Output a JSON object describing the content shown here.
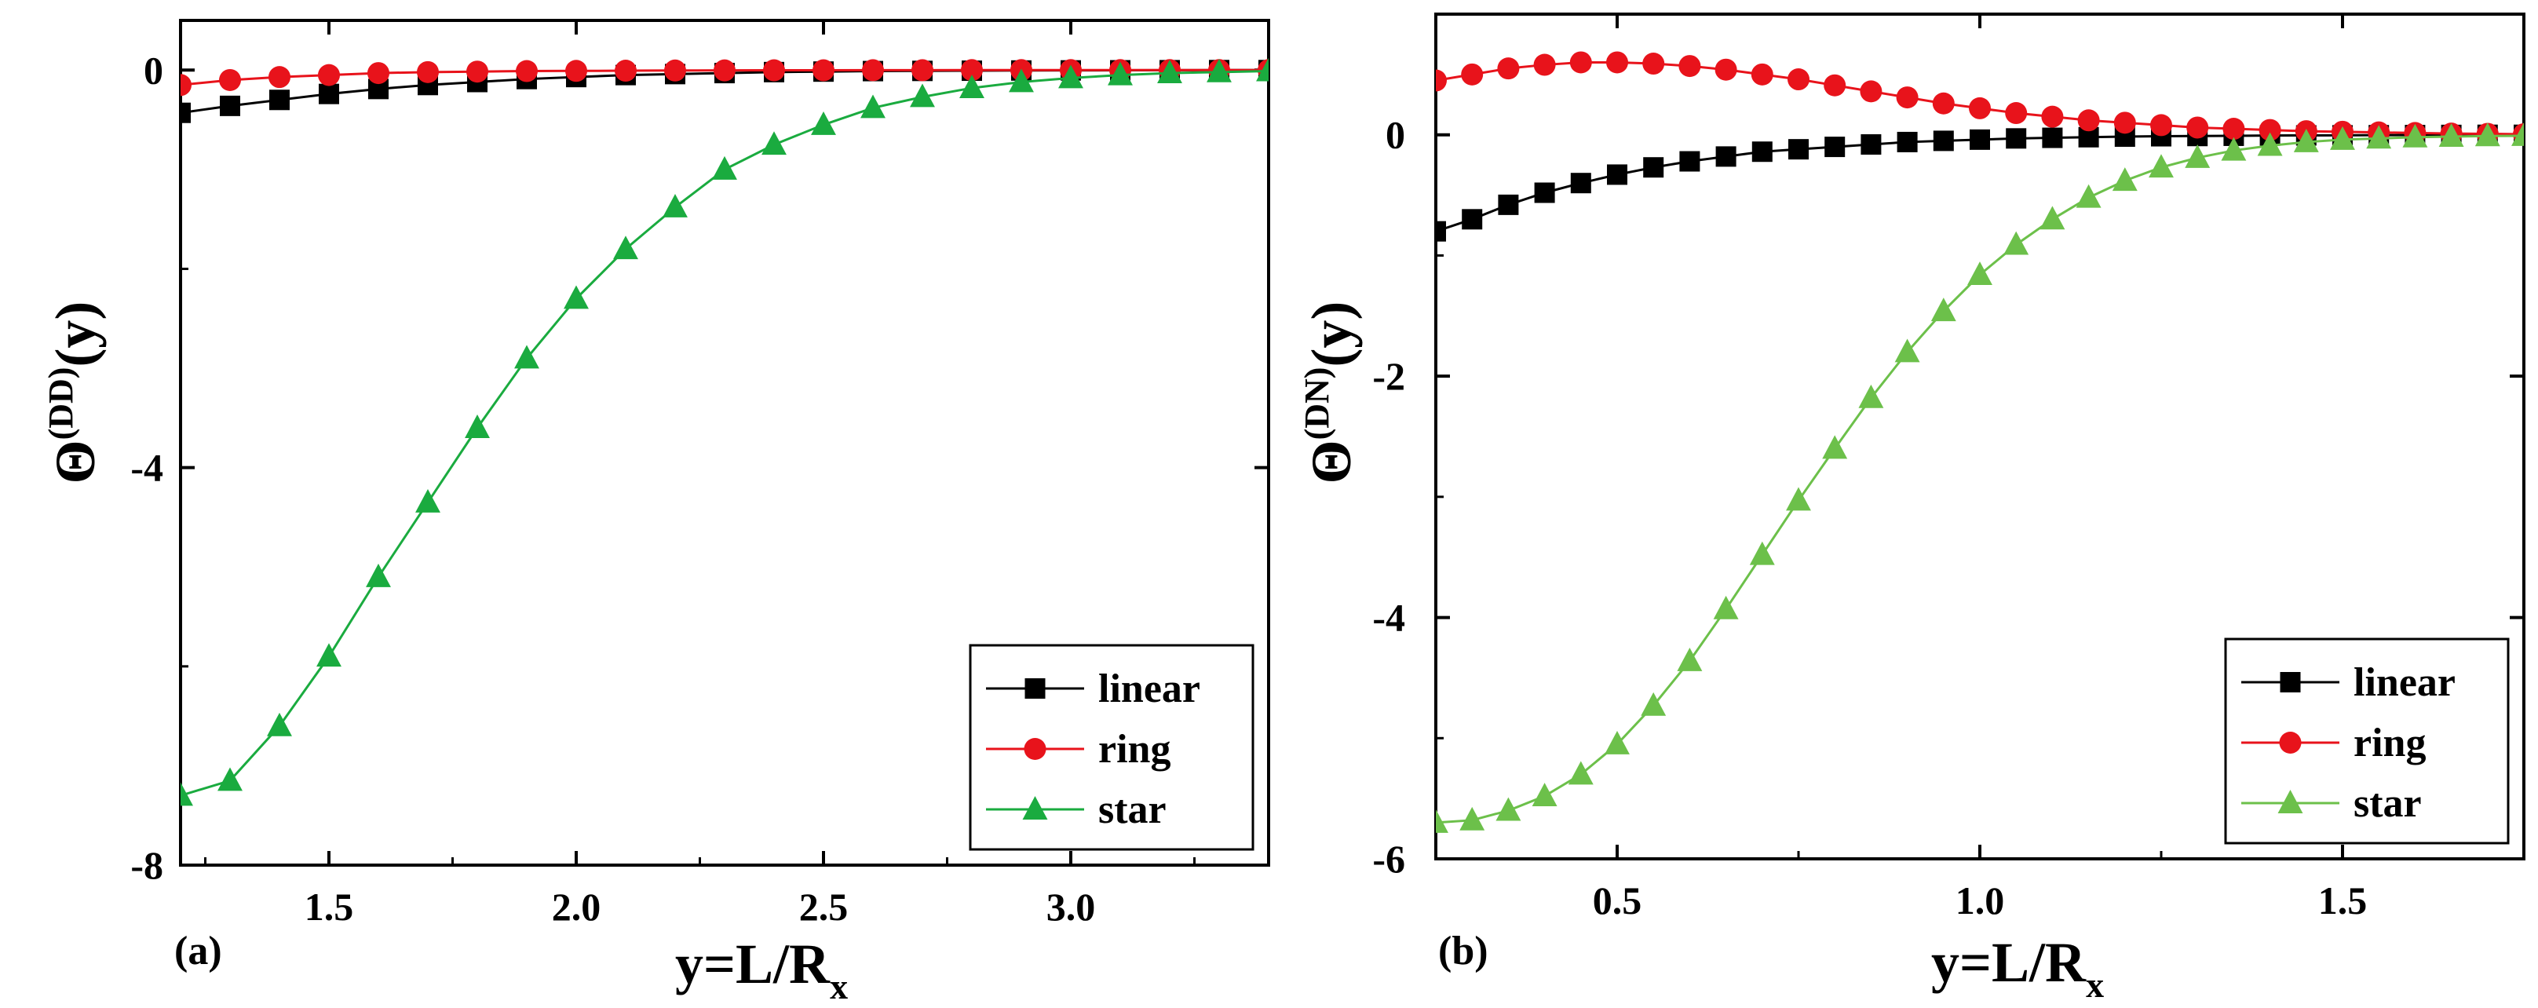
{
  "chart_data": [
    {
      "panel": "(a)",
      "type": "line",
      "xlabel": "y=L/R",
      "xlabel_sub": "x",
      "ylabel_symbol": "Θ",
      "ylabel_sup": "(DD)",
      "ylabel_arg": "(y)",
      "xlim": [
        1.2,
        3.4
      ],
      "ylim": [
        -8,
        0.5
      ],
      "xticks": [
        1.5,
        2.0,
        2.5,
        3.0
      ],
      "xtick_labels": [
        "1.5",
        "2.0",
        "2.5",
        "3.0"
      ],
      "yticks": [
        0,
        -4,
        -8
      ],
      "ytick_labels": [
        "0",
        "-4",
        "-8"
      ],
      "legend_position": "bottom-right",
      "series": [
        {
          "name": "linear",
          "color": "#000000",
          "marker": "square",
          "x": [
            1.2,
            1.3,
            1.4,
            1.5,
            1.6,
            1.7,
            1.8,
            1.9,
            2.0,
            2.1,
            2.2,
            2.3,
            2.4,
            2.5,
            2.6,
            2.7,
            2.8,
            2.9,
            3.0,
            3.1,
            3.2,
            3.3,
            3.4
          ],
          "values": [
            -0.43,
            -0.36,
            -0.3,
            -0.24,
            -0.19,
            -0.15,
            -0.12,
            -0.09,
            -0.07,
            -0.05,
            -0.04,
            -0.03,
            -0.02,
            -0.015,
            -0.01,
            -0.008,
            -0.006,
            -0.004,
            -0.003,
            -0.002,
            -0.001,
            0,
            0
          ]
        },
        {
          "name": "ring",
          "color": "#e8131b",
          "marker": "circle",
          "x": [
            1.2,
            1.3,
            1.4,
            1.5,
            1.6,
            1.7,
            1.8,
            1.9,
            2.0,
            2.1,
            2.2,
            2.3,
            2.4,
            2.5,
            2.6,
            2.7,
            2.8,
            2.9,
            3.0,
            3.1,
            3.2,
            3.3,
            3.4
          ],
          "values": [
            -0.15,
            -0.1,
            -0.07,
            -0.05,
            -0.03,
            -0.02,
            -0.015,
            -0.01,
            -0.008,
            -0.006,
            -0.004,
            -0.003,
            -0.002,
            -0.002,
            -0.001,
            -0.001,
            0,
            0,
            0,
            0,
            0,
            0,
            0
          ]
        },
        {
          "name": "star",
          "color": "#1aab3f",
          "marker": "triangle",
          "x": [
            1.2,
            1.3,
            1.4,
            1.5,
            1.6,
            1.7,
            1.8,
            1.9,
            2.0,
            2.1,
            2.2,
            2.3,
            2.4,
            2.5,
            2.6,
            2.7,
            2.8,
            2.9,
            3.0,
            3.1,
            3.2,
            3.3,
            3.4
          ],
          "values": [
            -7.3,
            -7.15,
            -6.6,
            -5.9,
            -5.1,
            -4.35,
            -3.6,
            -2.9,
            -2.3,
            -1.8,
            -1.38,
            -1.0,
            -0.75,
            -0.55,
            -0.38,
            -0.27,
            -0.18,
            -0.12,
            -0.08,
            -0.05,
            -0.03,
            -0.02,
            -0.01
          ]
        }
      ]
    },
    {
      "panel": "(b)",
      "type": "line",
      "xlabel": "y=L/R",
      "xlabel_sub": "x",
      "ylabel_symbol": "Θ",
      "ylabel_sup": "(DN)",
      "ylabel_arg": "(y)",
      "xlim": [
        0.25,
        1.75
      ],
      "ylim": [
        -6,
        1.0
      ],
      "xticks": [
        0.5,
        1.0,
        1.5
      ],
      "xtick_labels": [
        "0.5",
        "1.0",
        "1.5"
      ],
      "yticks": [
        0,
        -2,
        -4,
        -6
      ],
      "ytick_labels": [
        "0",
        "-2",
        "-4",
        "-6"
      ],
      "legend_position": "bottom-right",
      "series": [
        {
          "name": "linear",
          "color": "#000000",
          "marker": "square",
          "x": [
            0.25,
            0.3,
            0.35,
            0.4,
            0.45,
            0.5,
            0.55,
            0.6,
            0.65,
            0.7,
            0.75,
            0.8,
            0.85,
            0.9,
            0.95,
            1.0,
            1.05,
            1.1,
            1.15,
            1.2,
            1.25,
            1.3,
            1.35,
            1.4,
            1.45,
            1.5,
            1.55,
            1.6,
            1.65,
            1.7,
            1.75
          ],
          "values": [
            -0.8,
            -0.7,
            -0.58,
            -0.48,
            -0.4,
            -0.33,
            -0.27,
            -0.22,
            -0.18,
            -0.14,
            -0.12,
            -0.1,
            -0.08,
            -0.06,
            -0.05,
            -0.04,
            -0.03,
            -0.025,
            -0.02,
            -0.015,
            -0.012,
            -0.01,
            -0.008,
            -0.006,
            -0.005,
            -0.004,
            -0.003,
            -0.002,
            -0.001,
            0,
            0
          ]
        },
        {
          "name": "ring",
          "color": "#e8131b",
          "marker": "circle",
          "x": [
            0.25,
            0.3,
            0.35,
            0.4,
            0.45,
            0.5,
            0.55,
            0.6,
            0.65,
            0.7,
            0.75,
            0.8,
            0.85,
            0.9,
            0.95,
            1.0,
            1.05,
            1.1,
            1.15,
            1.2,
            1.25,
            1.3,
            1.35,
            1.4,
            1.45,
            1.5,
            1.55,
            1.6,
            1.65,
            1.7,
            1.75
          ],
          "values": [
            0.45,
            0.5,
            0.55,
            0.58,
            0.6,
            0.6,
            0.59,
            0.57,
            0.54,
            0.5,
            0.46,
            0.41,
            0.36,
            0.31,
            0.26,
            0.22,
            0.18,
            0.15,
            0.12,
            0.1,
            0.08,
            0.06,
            0.05,
            0.04,
            0.03,
            0.025,
            0.02,
            0.015,
            0.01,
            0.008,
            0.005
          ]
        },
        {
          "name": "star",
          "color": "#6cc04a",
          "marker": "triangle",
          "x": [
            0.25,
            0.3,
            0.35,
            0.4,
            0.45,
            0.5,
            0.55,
            0.6,
            0.65,
            0.7,
            0.75,
            0.8,
            0.85,
            0.9,
            0.95,
            1.0,
            1.05,
            1.1,
            1.15,
            1.2,
            1.25,
            1.3,
            1.35,
            1.4,
            1.45,
            1.5,
            1.55,
            1.6,
            1.65,
            1.7,
            1.75
          ],
          "values": [
            -5.7,
            -5.68,
            -5.6,
            -5.48,
            -5.3,
            -5.05,
            -4.73,
            -4.36,
            -3.93,
            -3.48,
            -3.03,
            -2.6,
            -2.18,
            -1.8,
            -1.46,
            -1.16,
            -0.91,
            -0.7,
            -0.52,
            -0.38,
            -0.27,
            -0.19,
            -0.13,
            -0.09,
            -0.06,
            -0.04,
            -0.03,
            -0.02,
            -0.015,
            -0.01,
            -0.008
          ]
        }
      ]
    }
  ]
}
